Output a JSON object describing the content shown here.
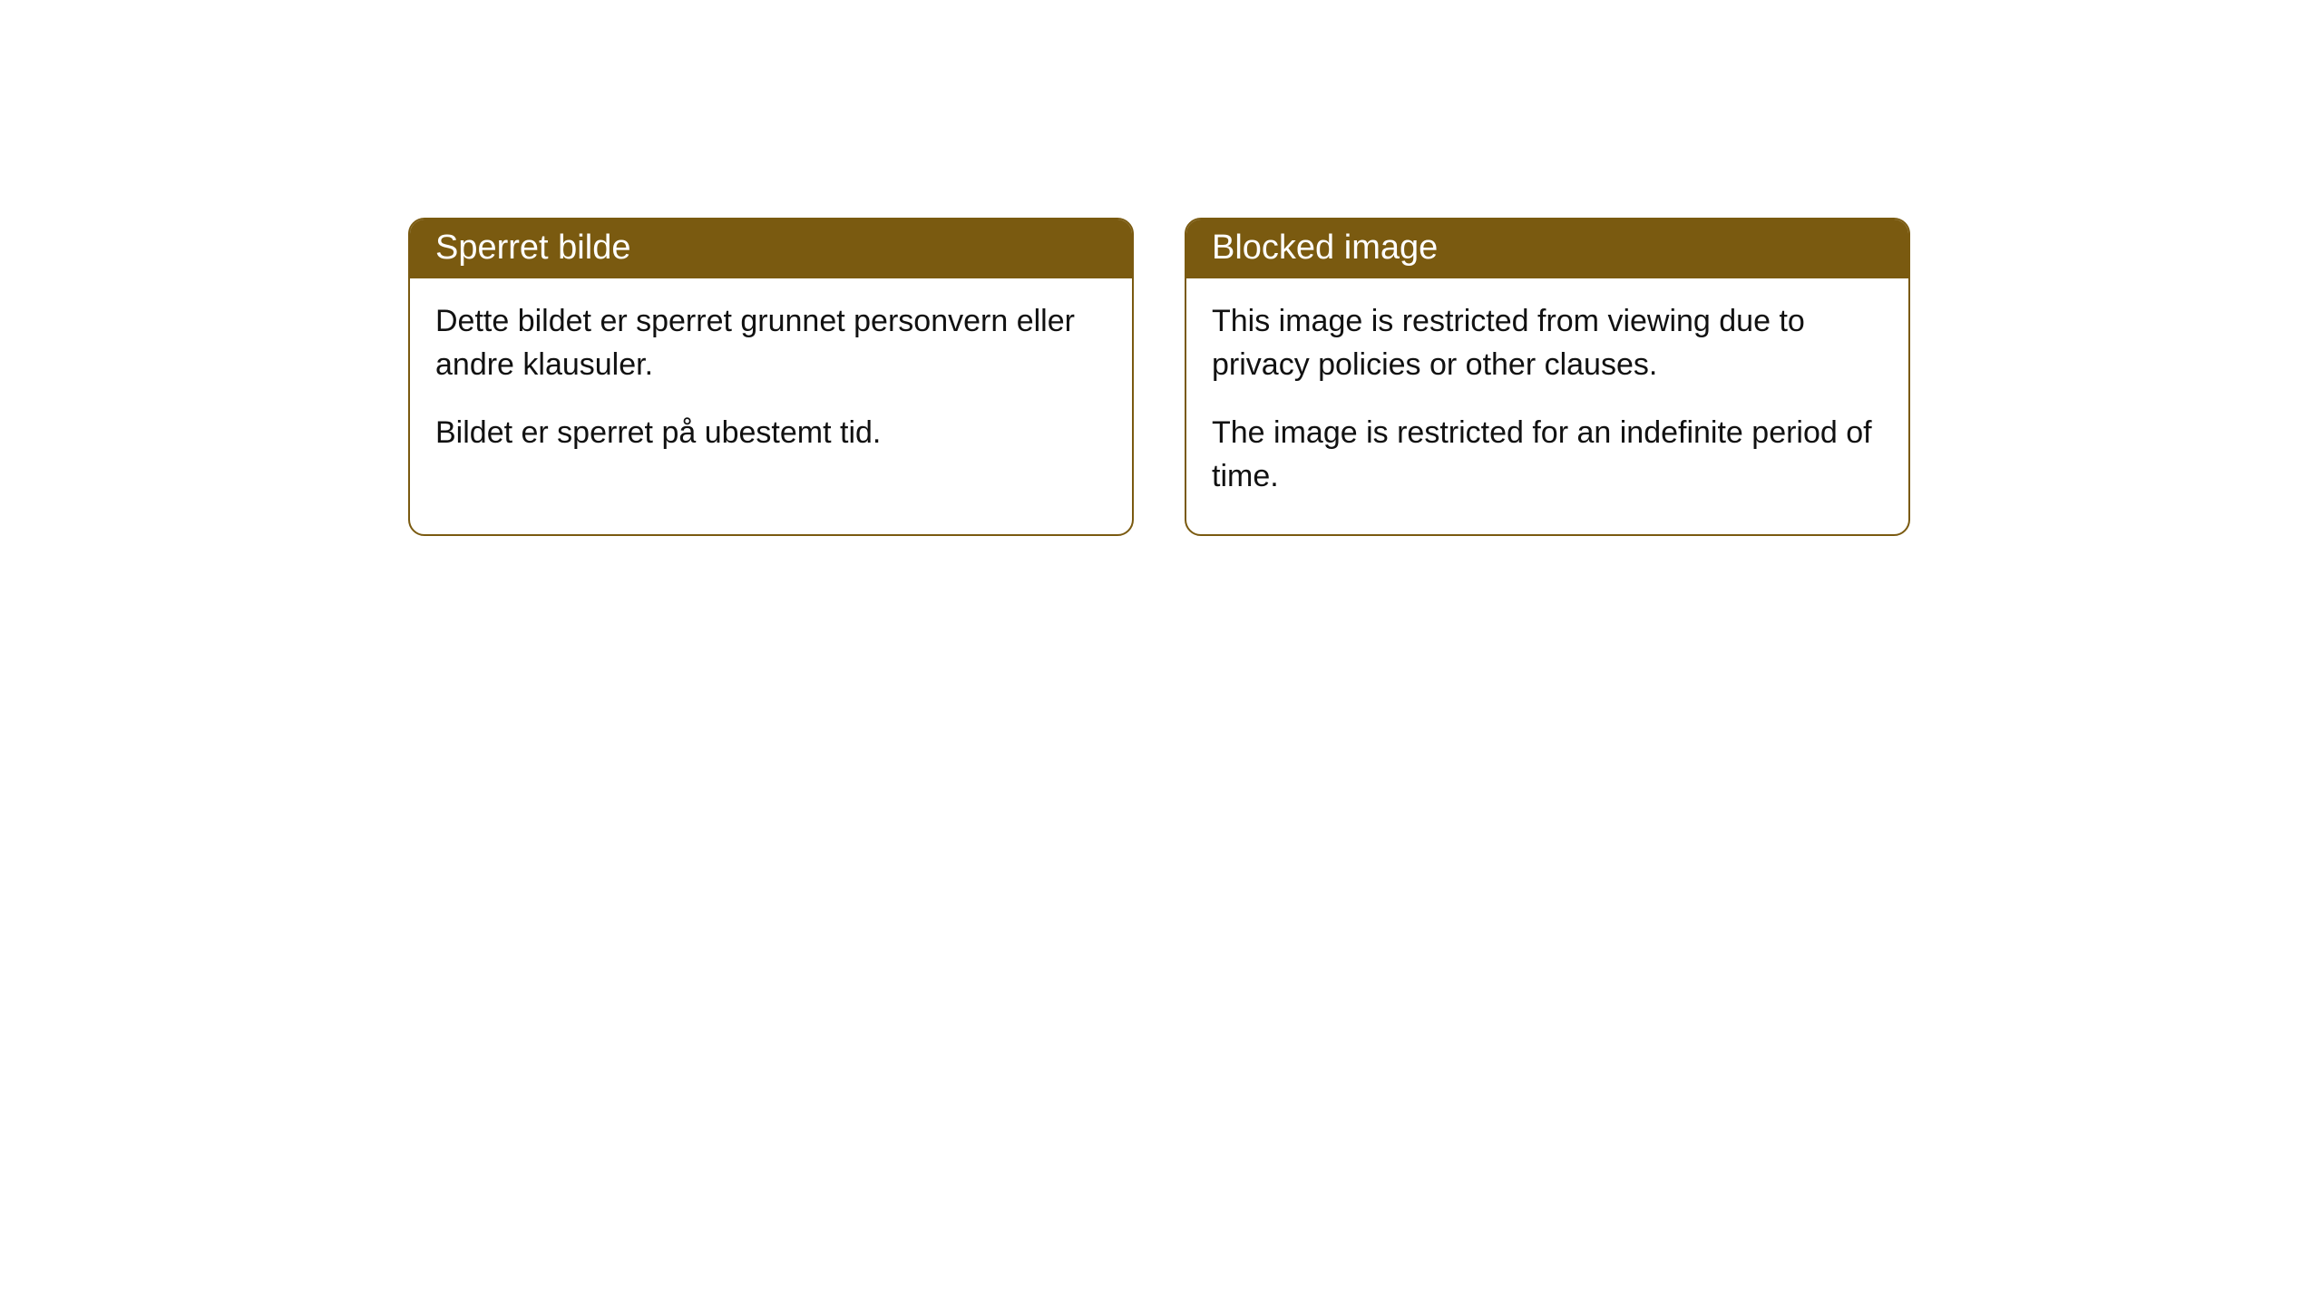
{
  "cards": [
    {
      "title": "Sperret bilde",
      "paragraph1": "Dette bildet er sperret grunnet personvern eller andre klausuler.",
      "paragraph2": "Bildet er sperret på ubestemt tid."
    },
    {
      "title": "Blocked image",
      "paragraph1": "This image is restricted from viewing due to privacy policies or other clauses.",
      "paragraph2": "The image is restricted for an indefinite period of time."
    }
  ],
  "styling": {
    "header_background": "#7a5a10",
    "header_text_color": "#ffffff",
    "border_color": "#7a5a10",
    "body_background": "#ffffff",
    "body_text_color": "#111111",
    "border_radius": 18,
    "title_fontsize": 38,
    "body_fontsize": 34
  }
}
